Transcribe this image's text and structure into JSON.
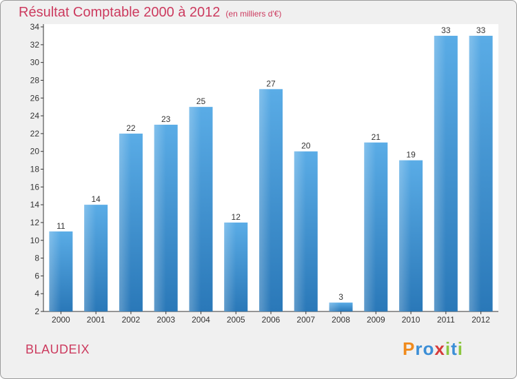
{
  "chart_data": {
    "type": "bar",
    "title": "Résultat Comptable 2000 à 2012",
    "subtitle": "(en milliers d'€)",
    "xlabel": "",
    "ylabel": "",
    "categories": [
      "2000",
      "2001",
      "2002",
      "2003",
      "2004",
      "2005",
      "2006",
      "2007",
      "2008",
      "2009",
      "2010",
      "2011",
      "2012"
    ],
    "values": [
      11,
      14,
      22,
      23,
      25,
      12,
      27,
      20,
      3,
      21,
      19,
      33,
      33
    ],
    "ylim": [
      2,
      34
    ],
    "yticks": [
      2,
      4,
      6,
      8,
      10,
      12,
      14,
      16,
      18,
      20,
      22,
      24,
      26,
      28,
      30,
      32,
      34
    ],
    "grid": false,
    "colors": {
      "bar_top": "#5aace6",
      "bar_bottom": "#2a78b8",
      "title": "#cc3a5e",
      "axis": "#333333",
      "plot_background": "#ffffff"
    }
  },
  "footer": {
    "location": "BLAUDEIX",
    "logo_letters": [
      {
        "ch": "P",
        "color": "#f08a1c"
      },
      {
        "ch": "r",
        "color": "#3b8ed6"
      },
      {
        "ch": "o",
        "color": "#3b8ed6"
      },
      {
        "ch": "x",
        "color": "#d63a3a"
      },
      {
        "ch": "i",
        "color": "#8cc63f"
      },
      {
        "ch": "t",
        "color": "#3b8ed6"
      },
      {
        "ch": "i",
        "color": "#8cc63f"
      }
    ]
  }
}
